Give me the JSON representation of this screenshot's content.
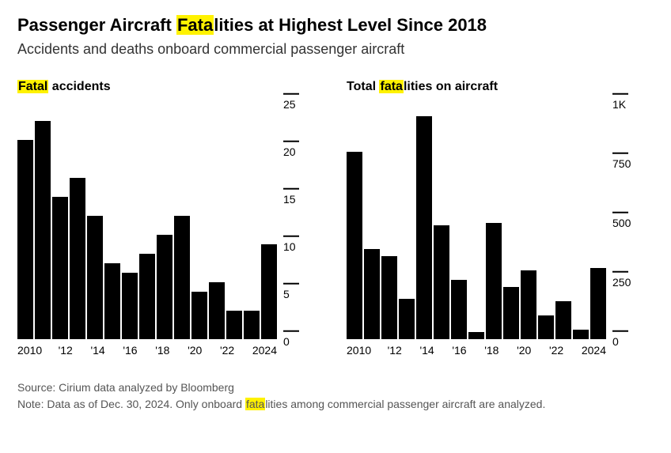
{
  "headline_pre": "Passenger Aircraft ",
  "headline_hl": "Fata",
  "headline_post": "lities at Highest Level Since 2018",
  "subhead": "Accidents and deaths onboard commercial passenger aircraft",
  "highlight_color": "#fff200",
  "bar_color": "#000000",
  "background_color": "#ffffff",
  "text_color": "#000000",
  "years": [
    2010,
    2011,
    2012,
    2013,
    2014,
    2015,
    2016,
    2017,
    2018,
    2019,
    2020,
    2021,
    2022,
    2023,
    2024
  ],
  "x_tick_labels": [
    "2010",
    "'12",
    "'14",
    "'16",
    "'18",
    "'20",
    "'22",
    "2024"
  ],
  "x_tick_indices": [
    0,
    2,
    4,
    6,
    8,
    10,
    12,
    14
  ],
  "panel_left": {
    "title_hl": "Fatal",
    "title_rest": " accidents",
    "type": "bar",
    "ylim": [
      0,
      25
    ],
    "yticks": [
      0,
      5,
      10,
      15,
      20,
      25
    ],
    "values": [
      21,
      23,
      15,
      17,
      13,
      8,
      7,
      9,
      11,
      13,
      5,
      6,
      3,
      3,
      10
    ]
  },
  "panel_right": {
    "title_pre": "Total ",
    "title_hl": "fata",
    "title_post": "lities on aircraft",
    "type": "bar",
    "ylim": [
      0,
      1000
    ],
    "yticks": [
      0,
      250,
      500,
      750,
      1000
    ],
    "ytick_labels": [
      "0",
      "250",
      "500",
      "750",
      "1K"
    ],
    "values": [
      790,
      380,
      350,
      170,
      940,
      480,
      250,
      30,
      490,
      220,
      290,
      100,
      160,
      40,
      300
    ]
  },
  "footer_source": "Source: Cirium data analyzed by Bloomberg",
  "footer_note_pre": "Note: Data as of Dec. 30, 2024. Only onboard ",
  "footer_note_hl": "fata",
  "footer_note_post": "lities among commercial passenger aircraft are analyzed.",
  "fontsize_headline": 22,
  "fontsize_subhead": 18,
  "fontsize_panel_title": 16,
  "fontsize_axis": 14,
  "fontsize_footer": 14
}
